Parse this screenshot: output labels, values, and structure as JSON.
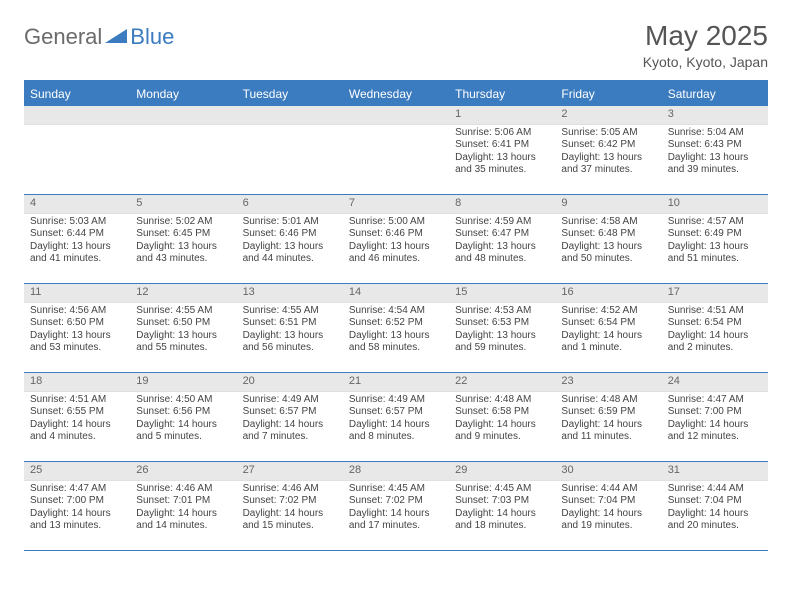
{
  "logo": {
    "part1": "General",
    "part2": "Blue"
  },
  "title": "May 2025",
  "location": "Kyoto, Kyoto, Japan",
  "header_color": "#3b7bbf",
  "daynum_bg": "#e8e8e8",
  "dayNames": [
    "Sunday",
    "Monday",
    "Tuesday",
    "Wednesday",
    "Thursday",
    "Friday",
    "Saturday"
  ],
  "weeks": [
    [
      null,
      null,
      null,
      null,
      {
        "n": "1",
        "sr": "5:06 AM",
        "ss": "6:41 PM",
        "dl": "13 hours and 35 minutes."
      },
      {
        "n": "2",
        "sr": "5:05 AM",
        "ss": "6:42 PM",
        "dl": "13 hours and 37 minutes."
      },
      {
        "n": "3",
        "sr": "5:04 AM",
        "ss": "6:43 PM",
        "dl": "13 hours and 39 minutes."
      }
    ],
    [
      {
        "n": "4",
        "sr": "5:03 AM",
        "ss": "6:44 PM",
        "dl": "13 hours and 41 minutes."
      },
      {
        "n": "5",
        "sr": "5:02 AM",
        "ss": "6:45 PM",
        "dl": "13 hours and 43 minutes."
      },
      {
        "n": "6",
        "sr": "5:01 AM",
        "ss": "6:46 PM",
        "dl": "13 hours and 44 minutes."
      },
      {
        "n": "7",
        "sr": "5:00 AM",
        "ss": "6:46 PM",
        "dl": "13 hours and 46 minutes."
      },
      {
        "n": "8",
        "sr": "4:59 AM",
        "ss": "6:47 PM",
        "dl": "13 hours and 48 minutes."
      },
      {
        "n": "9",
        "sr": "4:58 AM",
        "ss": "6:48 PM",
        "dl": "13 hours and 50 minutes."
      },
      {
        "n": "10",
        "sr": "4:57 AM",
        "ss": "6:49 PM",
        "dl": "13 hours and 51 minutes."
      }
    ],
    [
      {
        "n": "11",
        "sr": "4:56 AM",
        "ss": "6:50 PM",
        "dl": "13 hours and 53 minutes."
      },
      {
        "n": "12",
        "sr": "4:55 AM",
        "ss": "6:50 PM",
        "dl": "13 hours and 55 minutes."
      },
      {
        "n": "13",
        "sr": "4:55 AM",
        "ss": "6:51 PM",
        "dl": "13 hours and 56 minutes."
      },
      {
        "n": "14",
        "sr": "4:54 AM",
        "ss": "6:52 PM",
        "dl": "13 hours and 58 minutes."
      },
      {
        "n": "15",
        "sr": "4:53 AM",
        "ss": "6:53 PM",
        "dl": "13 hours and 59 minutes."
      },
      {
        "n": "16",
        "sr": "4:52 AM",
        "ss": "6:54 PM",
        "dl": "14 hours and 1 minute."
      },
      {
        "n": "17",
        "sr": "4:51 AM",
        "ss": "6:54 PM",
        "dl": "14 hours and 2 minutes."
      }
    ],
    [
      {
        "n": "18",
        "sr": "4:51 AM",
        "ss": "6:55 PM",
        "dl": "14 hours and 4 minutes."
      },
      {
        "n": "19",
        "sr": "4:50 AM",
        "ss": "6:56 PM",
        "dl": "14 hours and 5 minutes."
      },
      {
        "n": "20",
        "sr": "4:49 AM",
        "ss": "6:57 PM",
        "dl": "14 hours and 7 minutes."
      },
      {
        "n": "21",
        "sr": "4:49 AM",
        "ss": "6:57 PM",
        "dl": "14 hours and 8 minutes."
      },
      {
        "n": "22",
        "sr": "4:48 AM",
        "ss": "6:58 PM",
        "dl": "14 hours and 9 minutes."
      },
      {
        "n": "23",
        "sr": "4:48 AM",
        "ss": "6:59 PM",
        "dl": "14 hours and 11 minutes."
      },
      {
        "n": "24",
        "sr": "4:47 AM",
        "ss": "7:00 PM",
        "dl": "14 hours and 12 minutes."
      }
    ],
    [
      {
        "n": "25",
        "sr": "4:47 AM",
        "ss": "7:00 PM",
        "dl": "14 hours and 13 minutes."
      },
      {
        "n": "26",
        "sr": "4:46 AM",
        "ss": "7:01 PM",
        "dl": "14 hours and 14 minutes."
      },
      {
        "n": "27",
        "sr": "4:46 AM",
        "ss": "7:02 PM",
        "dl": "14 hours and 15 minutes."
      },
      {
        "n": "28",
        "sr": "4:45 AM",
        "ss": "7:02 PM",
        "dl": "14 hours and 17 minutes."
      },
      {
        "n": "29",
        "sr": "4:45 AM",
        "ss": "7:03 PM",
        "dl": "14 hours and 18 minutes."
      },
      {
        "n": "30",
        "sr": "4:44 AM",
        "ss": "7:04 PM",
        "dl": "14 hours and 19 minutes."
      },
      {
        "n": "31",
        "sr": "4:44 AM",
        "ss": "7:04 PM",
        "dl": "14 hours and 20 minutes."
      }
    ]
  ],
  "labels": {
    "sunrise": "Sunrise:",
    "sunset": "Sunset:",
    "daylight": "Daylight:"
  }
}
